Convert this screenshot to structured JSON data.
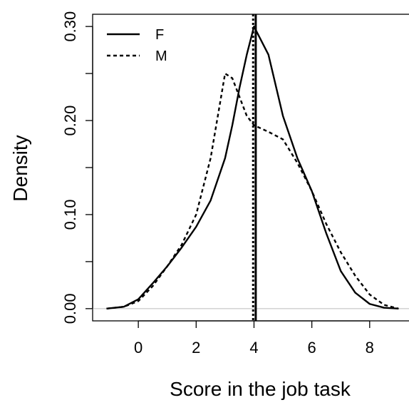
{
  "chart_data": {
    "type": "line",
    "xlabel": "Score in the job task",
    "ylabel": "Density",
    "x": [
      -1.1,
      -0.5,
      0,
      0.5,
      1,
      1.5,
      2,
      2.5,
      3,
      3.25,
      3.5,
      3.75,
      4,
      4.5,
      5,
      5.5,
      6,
      6.5,
      7,
      7.5,
      8,
      8.5,
      9
    ],
    "series": [
      {
        "name": "F",
        "color": "#000000",
        "dash": "solid",
        "values": [
          0,
          0.002,
          0.01,
          0.027,
          0.045,
          0.065,
          0.087,
          0.115,
          0.16,
          0.195,
          0.235,
          0.27,
          0.3,
          0.27,
          0.205,
          0.16,
          0.125,
          0.08,
          0.04,
          0.017,
          0.005,
          0.001,
          0
        ]
      },
      {
        "name": "M",
        "color": "#000000",
        "dash": "dashed",
        "values": [
          0,
          0.002,
          0.008,
          0.024,
          0.045,
          0.068,
          0.1,
          0.16,
          0.25,
          0.245,
          0.225,
          0.205,
          0.195,
          0.188,
          0.18,
          0.155,
          0.125,
          0.09,
          0.06,
          0.035,
          0.015,
          0.004,
          0
        ]
      }
    ],
    "vlines": [
      {
        "value": 3.97,
        "dash": "dotted"
      },
      {
        "value": 4.06,
        "dash": "solid"
      }
    ],
    "xlim": [
      -1.58,
      9.36
    ],
    "ylim": [
      -0.013,
      0.313
    ],
    "xticks": [
      0,
      2,
      4,
      6,
      8
    ],
    "yticks": [
      {
        "value": 0,
        "label": "0.00"
      },
      {
        "value": 0.1,
        "label": "0.10"
      },
      {
        "value": 0.2,
        "label": "0.20"
      },
      {
        "value": 0.3,
        "label": "0.30"
      }
    ],
    "yminor_ticks": [
      0.05,
      0.15,
      0.25
    ],
    "zero_line": true,
    "legend": "top-left"
  }
}
